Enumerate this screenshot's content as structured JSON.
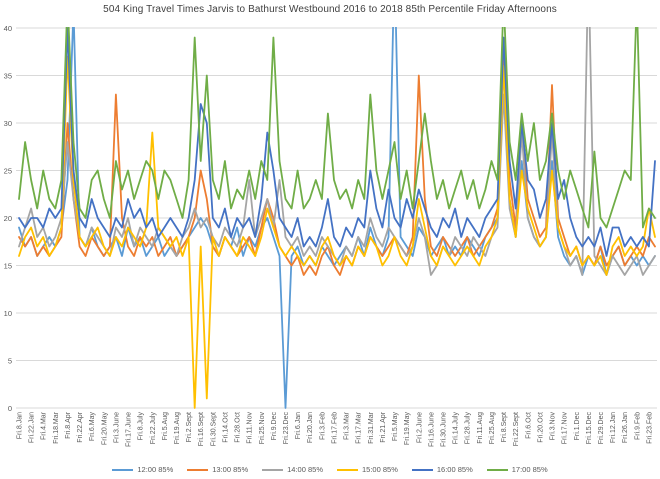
{
  "title": "504 King Travel Times Jarvis to Bathurst Westbound 2016 to 2018 85th Percentile Friday Afternoons",
  "colors": {
    "background": "#FFFFFF",
    "gridline": "#D9D9D9",
    "axis_text": "#595959",
    "title_text": "#404040"
  },
  "chart_data": {
    "type": "line",
    "title": "504 King Travel Times Jarvis to Bathurst Westbound 2016 to 2018 85th Percentile Friday Afternoons",
    "xlabel": "",
    "ylabel": "",
    "ylim": [
      0,
      40
    ],
    "y_ticks": [
      0,
      5,
      10,
      15,
      20,
      25,
      30,
      35,
      40
    ],
    "grid": true,
    "legend_position": "bottom",
    "num_points": 106,
    "x_label_interval": 2,
    "x_tick_labels": [
      "Fri.8.Jan",
      "Fri.22.Jan",
      "Fri.4.Mar",
      "Fri.18.Mar",
      "Fri.8.Apr",
      "Fri.22.Apr",
      "Fri.6.May",
      "Fri.20.May",
      "Fri.3.June",
      "Fri.17.June",
      "Fri.8.July",
      "Fri.22.July",
      "Fri.5.Aug",
      "Fri.19.Aug",
      "Fri.2.Sept",
      "Fri.16.Sept",
      "Fri.30.Sept",
      "Fri.14.Oct",
      "Fri.28.Oct",
      "Fri.11.Nov",
      "Fri.25.Nov",
      "Fri.9.Dec",
      "Fri.23.Dec",
      "Fri.6.Jan",
      "Fri.20.Jan",
      "Fri.3.Feb",
      "Fri.17.Feb",
      "Fri.3.Mar",
      "Fri.17.Mar",
      "Fri.31.Mar",
      "Fri.21.Apr",
      "Fri.5.May",
      "Fri.19.May",
      "Fri.2.June",
      "Fri.16.June",
      "Fri.30.June",
      "Fri.14.July",
      "Fri.28.July",
      "Fri.11.Aug",
      "Fri.25.Aug",
      "Fri.8.Sept",
      "Fri.22.Sept",
      "Fri.6.Oct",
      "Fri.20.Oct",
      "Fri.3.Nov",
      "Fri.17.Nov",
      "Fri.1.Dec",
      "Fri.15.Dec",
      "Fri.29.Dec",
      "Fri.12.Jan",
      "Fri.26.Jan",
      "Fri.9.Feb",
      "Fri.23.Feb"
    ],
    "series": [
      {
        "name": "12:00 85%",
        "color": "#5B9BD5",
        "values": [
          19,
          17,
          18,
          16,
          17,
          18,
          17,
          19,
          24,
          42,
          18,
          17,
          19,
          17,
          16,
          17,
          18,
          16,
          19,
          17,
          18,
          16,
          17,
          18,
          16,
          17,
          16,
          17,
          18,
          19,
          20,
          19,
          17,
          16,
          18,
          17,
          19,
          16,
          18,
          17,
          19,
          20,
          18,
          16,
          0,
          16,
          17,
          15,
          16,
          15,
          17,
          16,
          15,
          16,
          17,
          16,
          18,
          16,
          19,
          17,
          16,
          18,
          47,
          18,
          17,
          16,
          19,
          18,
          16,
          17,
          18,
          16,
          17,
          16,
          18,
          17,
          16,
          18,
          19,
          20,
          36,
          22,
          18,
          26,
          20,
          18,
          17,
          18,
          26,
          18,
          16,
          15,
          16,
          14,
          16,
          15,
          17,
          14,
          16,
          17,
          15,
          16,
          15,
          16,
          15,
          16
        ]
      },
      {
        "name": "13:00 85%",
        "color": "#ED7D31",
        "values": [
          18,
          17,
          18,
          16,
          17,
          16,
          17,
          18,
          30,
          22,
          17,
          16,
          18,
          17,
          16,
          17,
          33,
          20,
          17,
          16,
          18,
          17,
          18,
          16,
          17,
          18,
          16,
          17,
          18,
          20,
          25,
          22,
          17,
          16,
          18,
          17,
          16,
          17,
          18,
          16,
          19,
          22,
          20,
          17,
          16,
          15,
          16,
          14,
          15,
          14,
          16,
          17,
          15,
          14,
          16,
          15,
          17,
          16,
          18,
          17,
          16,
          17,
          18,
          17,
          16,
          18,
          35,
          22,
          17,
          16,
          18,
          17,
          16,
          17,
          18,
          16,
          17,
          18,
          19,
          21,
          38,
          24,
          19,
          30,
          22,
          20,
          18,
          19,
          34,
          20,
          18,
          16,
          17,
          15,
          16,
          15,
          17,
          15,
          16,
          17,
          15,
          16,
          17,
          16,
          18,
          17
        ]
      },
      {
        "name": "14:00 85%",
        "color": "#A5A5A5",
        "values": [
          17,
          19,
          21,
          18,
          19,
          17,
          18,
          20,
          28,
          22,
          18,
          17,
          19,
          18,
          17,
          16,
          19,
          18,
          20,
          17,
          19,
          18,
          17,
          19,
          18,
          17,
          16,
          18,
          19,
          21,
          19,
          20,
          18,
          17,
          19,
          18,
          17,
          19,
          24,
          18,
          20,
          22,
          19,
          24,
          18,
          17,
          18,
          16,
          17,
          16,
          18,
          17,
          16,
          15,
          17,
          16,
          18,
          17,
          20,
          18,
          17,
          19,
          18,
          17,
          16,
          17,
          20,
          18,
          14,
          15,
          17,
          16,
          18,
          17,
          16,
          18,
          17,
          16,
          18,
          19,
          33,
          21,
          18,
          29,
          20,
          18,
          17,
          18,
          29,
          19,
          17,
          15,
          16,
          14,
          47,
          16,
          15,
          14,
          16,
          15,
          14,
          15,
          16,
          14,
          15,
          16
        ]
      },
      {
        "name": "15:00 85%",
        "color": "#FFC000",
        "values": [
          16,
          18,
          19,
          17,
          18,
          16,
          17,
          19,
          37,
          24,
          18,
          17,
          18,
          19,
          17,
          16,
          18,
          17,
          19,
          18,
          17,
          19,
          29,
          19,
          18,
          17,
          18,
          16,
          18,
          0,
          17,
          1,
          18,
          16,
          18,
          17,
          16,
          18,
          17,
          16,
          18,
          21,
          19,
          17,
          16,
          17,
          16,
          15,
          16,
          15,
          17,
          18,
          16,
          15,
          16,
          15,
          17,
          16,
          18,
          17,
          15,
          16,
          18,
          16,
          15,
          17,
          22,
          19,
          16,
          15,
          17,
          16,
          15,
          16,
          17,
          16,
          15,
          17,
          18,
          20,
          36,
          22,
          18,
          25,
          21,
          19,
          17,
          18,
          25,
          19,
          17,
          16,
          17,
          15,
          16,
          15,
          16,
          14,
          17,
          18,
          16,
          17,
          16,
          17,
          21,
          18
        ]
      },
      {
        "name": "16:00 85%",
        "color": "#4472C4",
        "values": [
          20,
          19,
          20,
          20,
          19,
          21,
          20,
          21,
          40,
          25,
          20,
          19,
          22,
          20,
          19,
          18,
          20,
          19,
          22,
          20,
          21,
          19,
          20,
          18,
          19,
          20,
          19,
          18,
          20,
          24,
          32,
          30,
          20,
          19,
          21,
          18,
          20,
          19,
          20,
          18,
          22,
          29,
          25,
          20,
          19,
          18,
          20,
          17,
          18,
          17,
          19,
          22,
          18,
          17,
          19,
          18,
          20,
          19,
          25,
          21,
          19,
          23,
          20,
          19,
          22,
          20,
          23,
          21,
          19,
          18,
          20,
          19,
          21,
          18,
          20,
          19,
          18,
          20,
          21,
          22,
          39,
          26,
          21,
          30,
          24,
          23,
          20,
          22,
          30,
          22,
          24,
          20,
          18,
          17,
          18,
          17,
          19,
          16,
          19,
          19,
          17,
          18,
          17,
          18,
          17,
          26
        ]
      },
      {
        "name": "17:00 85%",
        "color": "#70AD47",
        "values": [
          22,
          28,
          24,
          21,
          25,
          22,
          21,
          24,
          43,
          28,
          21,
          20,
          24,
          25,
          22,
          20,
          26,
          23,
          25,
          22,
          24,
          26,
          25,
          22,
          25,
          24,
          22,
          20,
          24,
          39,
          26,
          35,
          24,
          22,
          26,
          21,
          23,
          22,
          25,
          22,
          26,
          24,
          39,
          26,
          22,
          21,
          25,
          21,
          22,
          24,
          22,
          31,
          24,
          22,
          23,
          21,
          24,
          22,
          33,
          25,
          22,
          25,
          28,
          22,
          25,
          21,
          26,
          31,
          26,
          22,
          24,
          21,
          23,
          25,
          22,
          24,
          21,
          23,
          26,
          24,
          43,
          28,
          24,
          31,
          26,
          30,
          24,
          26,
          31,
          25,
          22,
          25,
          23,
          21,
          19,
          27,
          20,
          19,
          21,
          23,
          25,
          24,
          43,
          19,
          21,
          20
        ]
      }
    ]
  }
}
